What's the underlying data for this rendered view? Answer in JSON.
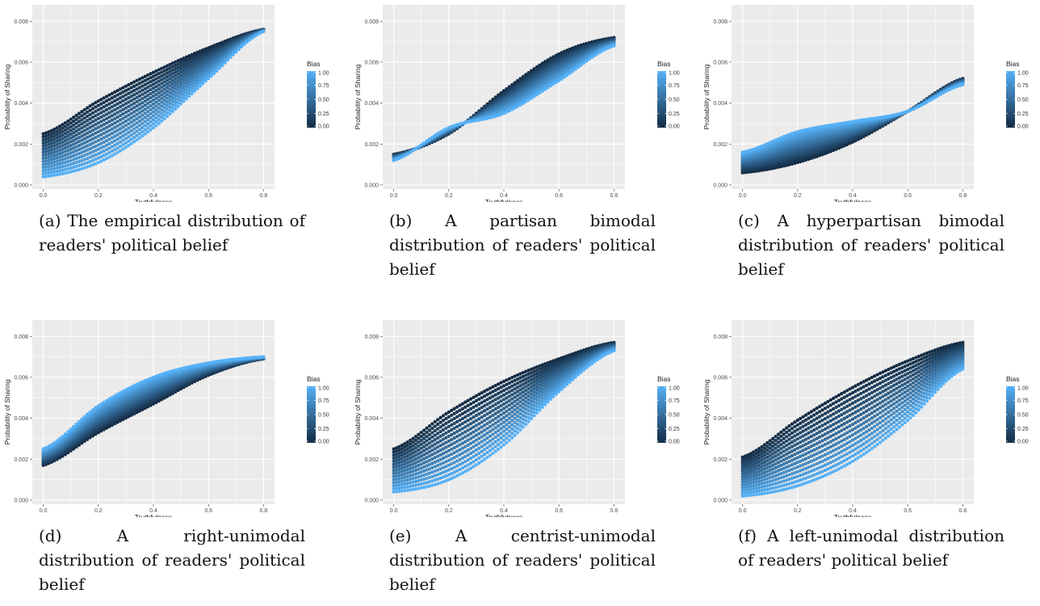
{
  "colors": {
    "panel_bg": "#ebebeb",
    "grid": "#ffffff",
    "bias_low": "#132b43",
    "bias_high": "#56b1f7"
  },
  "captions": [
    "(a) The empirical distribution of readers' political belief",
    "(b) A partisan bimodal distribution of readers' political belief",
    "(c) A hyperpartisan bimodal distribution of readers' political belief",
    "(d) A right-unimodal distribution of readers' political belief",
    "(e) A centrist-unimodal distribution of readers' political belief",
    "(f) A left-unimodal distribution of readers' political belief"
  ],
  "chart_data": [
    {
      "type": "scatter",
      "xlabel": "Truthfulness",
      "ylabel": "Probability of Sharing",
      "xlim": [
        -0.04,
        0.84
      ],
      "ylim": [
        -0.0002,
        0.0088
      ],
      "x_ticks": [
        "0.0",
        "0.2",
        "0.4",
        "0.6",
        "0.8"
      ],
      "y_ticks": [
        "0.000",
        "0.002",
        "0.004",
        "0.006",
        "0.008"
      ],
      "legend": {
        "title": "Bias",
        "position": "right",
        "ticks": [
          "1.00",
          "0.75",
          "0.50",
          "0.25",
          "0.00"
        ],
        "range": [
          0,
          1
        ]
      },
      "color_by": "Bias",
      "x_range": [
        0,
        0.8
      ],
      "bias0_curve": {
        "x": [
          0,
          0.2,
          0.4,
          0.6,
          0.8
        ],
        "y": [
          0.0025,
          0.0041,
          0.0055,
          0.0067,
          0.0076
        ]
      },
      "bias1_curve": {
        "x": [
          0,
          0.2,
          0.4,
          0.6,
          0.8
        ],
        "y": [
          0.0004,
          0.0011,
          0.0028,
          0.0052,
          0.0075
        ]
      },
      "grid": true
    },
    {
      "type": "scatter",
      "xlabel": "Truthfulness",
      "ylabel": "Probability of Sharing",
      "xlim": [
        -0.04,
        0.84
      ],
      "ylim": [
        -0.0002,
        0.0088
      ],
      "x_ticks": [
        "0.0",
        "0.2",
        "0.4",
        "0.6",
        "0.8"
      ],
      "y_ticks": [
        "0.000",
        "0.002",
        "0.004",
        "0.006",
        "0.008"
      ],
      "legend": {
        "title": "Bias",
        "position": "right",
        "ticks": [
          "1.00",
          "0.75",
          "0.50",
          "0.25",
          "0.00"
        ],
        "range": [
          0,
          1
        ]
      },
      "color_by": "Bias",
      "x_range": [
        0,
        0.8
      ],
      "bias0_curve": {
        "x": [
          0,
          0.2,
          0.4,
          0.6,
          0.8
        ],
        "y": [
          0.0015,
          0.0025,
          0.0046,
          0.0064,
          0.0072
        ]
      },
      "bias1_curve": {
        "x": [
          0,
          0.2,
          0.4,
          0.6,
          0.8
        ],
        "y": [
          0.0012,
          0.0028,
          0.0035,
          0.0051,
          0.0068
        ]
      },
      "grid": true
    },
    {
      "type": "scatter",
      "xlabel": "Truthfulness",
      "ylabel": "Probability of Sharing",
      "xlim": [
        -0.04,
        0.84
      ],
      "ylim": [
        -0.0002,
        0.0088
      ],
      "x_ticks": [
        "0.0",
        "0.2",
        "0.4",
        "0.6",
        "0.8"
      ],
      "y_ticks": [
        "0.000",
        "0.002",
        "0.004",
        "0.006",
        "0.008"
      ],
      "legend": {
        "title": "Bias",
        "position": "right",
        "ticks": [
          "1.00",
          "0.75",
          "0.50",
          "0.25",
          "0.00"
        ],
        "range": [
          0,
          1
        ]
      },
      "color_by": "Bias",
      "x_range": [
        0,
        0.8
      ],
      "bias0_curve": {
        "x": [
          0,
          0.2,
          0.4,
          0.6,
          0.8
        ],
        "y": [
          0.0006,
          0.0011,
          0.0021,
          0.0036,
          0.0052
        ]
      },
      "bias1_curve": {
        "x": [
          0,
          0.2,
          0.4,
          0.6,
          0.8
        ],
        "y": [
          0.0016,
          0.0026,
          0.0031,
          0.0036,
          0.0049
        ]
      },
      "grid": true
    },
    {
      "type": "scatter",
      "xlabel": "Truthfulness",
      "ylabel": "Probability of Sharing",
      "xlim": [
        -0.04,
        0.84
      ],
      "ylim": [
        -0.0002,
        0.0088
      ],
      "x_ticks": [
        "0.0",
        "0.2",
        "0.4",
        "0.6",
        "0.8"
      ],
      "y_ticks": [
        "0.000",
        "0.002",
        "0.004",
        "0.006",
        "0.008"
      ],
      "legend": {
        "title": "Bias",
        "position": "right",
        "ticks": [
          "1.00",
          "0.75",
          "0.50",
          "0.25",
          "0.00"
        ],
        "range": [
          0,
          1
        ]
      },
      "color_by": "Bias",
      "x_range": [
        0,
        0.8
      ],
      "bias0_curve": {
        "x": [
          0,
          0.2,
          0.4,
          0.6,
          0.8
        ],
        "y": [
          0.0017,
          0.0033,
          0.0047,
          0.0061,
          0.0069
        ]
      },
      "bias1_curve": {
        "x": [
          0,
          0.2,
          0.4,
          0.6,
          0.8
        ],
        "y": [
          0.0025,
          0.0046,
          0.006,
          0.0067,
          0.007
        ]
      },
      "grid": true
    },
    {
      "type": "scatter",
      "xlabel": "Truthfulness",
      "ylabel": "Probability of Sharing",
      "xlim": [
        -0.04,
        0.84
      ],
      "ylim": [
        -0.0002,
        0.0088
      ],
      "x_ticks": [
        "0.0",
        "0.2",
        "0.4",
        "0.6",
        "0.8"
      ],
      "y_ticks": [
        "0.000",
        "0.002",
        "0.004",
        "0.006",
        "0.008"
      ],
      "legend": {
        "title": "Bias",
        "position": "right",
        "ticks": [
          "1.00",
          "0.75",
          "0.50",
          "0.25",
          "0.00"
        ],
        "range": [
          0,
          1
        ]
      },
      "color_by": "Bias",
      "x_range": [
        0,
        0.8
      ],
      "bias0_curve": {
        "x": [
          0,
          0.2,
          0.4,
          0.6,
          0.8
        ],
        "y": [
          0.0025,
          0.0043,
          0.0058,
          0.0069,
          0.0077
        ]
      },
      "bias1_curve": {
        "x": [
          0,
          0.2,
          0.4,
          0.6,
          0.8
        ],
        "y": [
          0.0004,
          0.001,
          0.0027,
          0.0053,
          0.0073
        ]
      },
      "grid": true
    },
    {
      "type": "scatter",
      "xlabel": "Truthfulness",
      "ylabel": "Probability of Sharing",
      "xlim": [
        -0.04,
        0.84
      ],
      "ylim": [
        -0.0002,
        0.0088
      ],
      "x_ticks": [
        "0.0",
        "0.2",
        "0.4",
        "0.6",
        "0.8"
      ],
      "y_ticks": [
        "0.000",
        "0.002",
        "0.004",
        "0.006",
        "0.008"
      ],
      "legend": {
        "title": "Bias",
        "position": "right",
        "ticks": [
          "1.00",
          "0.75",
          "0.50",
          "0.25",
          "0.00"
        ],
        "range": [
          0,
          1
        ]
      },
      "color_by": "Bias",
      "x_range": [
        0,
        0.8
      ],
      "bias0_curve": {
        "x": [
          0,
          0.2,
          0.4,
          0.6,
          0.8
        ],
        "y": [
          0.0021,
          0.0039,
          0.0055,
          0.0068,
          0.0077
        ]
      },
      "bias1_curve": {
        "x": [
          0,
          0.2,
          0.4,
          0.6,
          0.8
        ],
        "y": [
          0.0002,
          0.0007,
          0.0019,
          0.0039,
          0.0064
        ]
      },
      "grid": true
    }
  ]
}
